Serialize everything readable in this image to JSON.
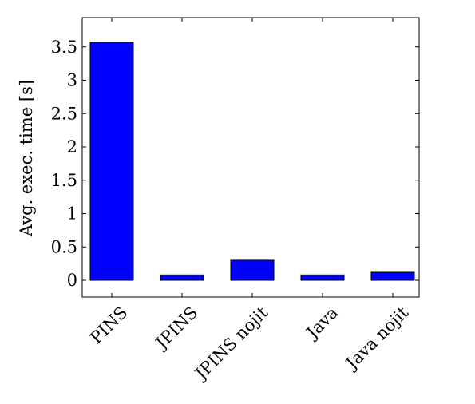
{
  "chart_data": {
    "type": "bar",
    "categories": [
      "PINS",
      "JPINS",
      "JPINS nojit",
      "Java",
      "Java nojit"
    ],
    "values": [
      3.57,
      0.08,
      0.3,
      0.08,
      0.12
    ],
    "title": "",
    "xlabel": "",
    "ylabel": "Avg. exec. time [s]",
    "ylim": [
      -0.25,
      3.9
    ],
    "yticks": [
      0,
      0.5,
      1,
      1.5,
      2,
      2.5,
      3,
      3.5
    ],
    "ytick_labels": [
      "0",
      "0.5",
      "1",
      "1.5",
      "2",
      "2.5",
      "3",
      "3.5"
    ],
    "grid": false,
    "legend": "none",
    "colors": {
      "bar_fill": "#0000ff",
      "bar_stroke": "#000000",
      "axis": "#000000"
    }
  }
}
